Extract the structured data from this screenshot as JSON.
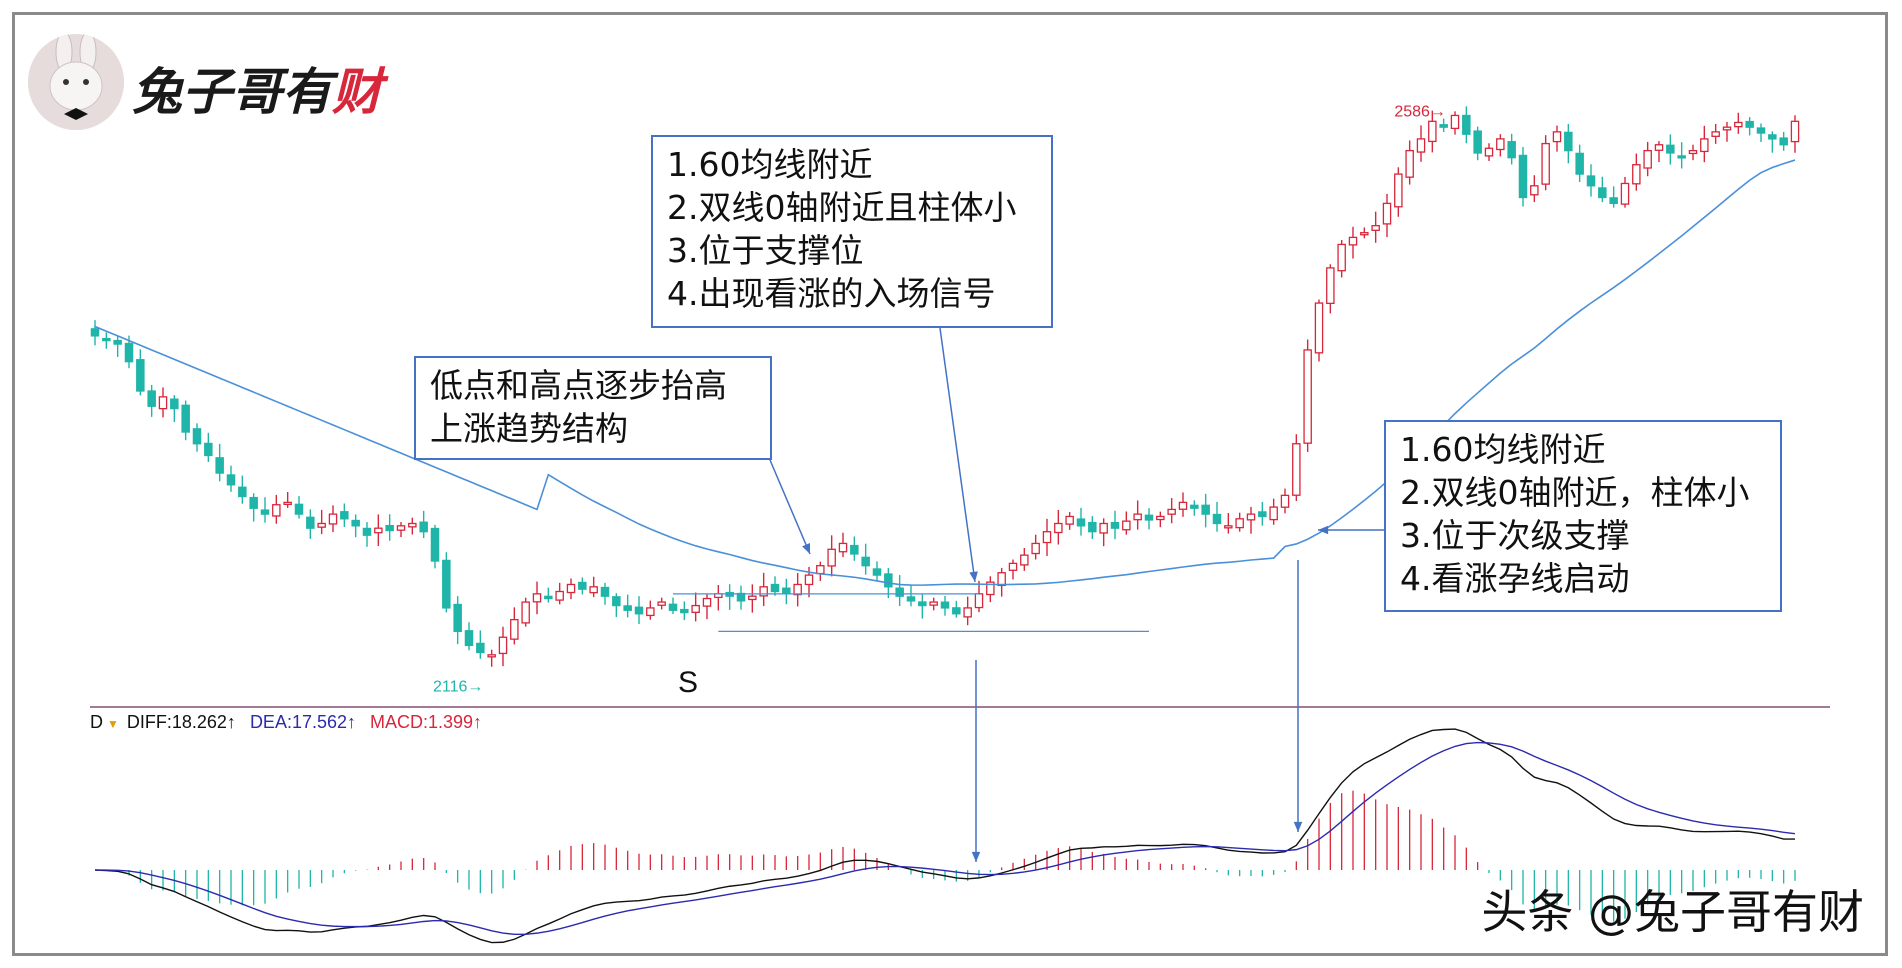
{
  "logo": {
    "text_main": "兔子哥有",
    "text_accent": "财",
    "avatar": "rabbit-avatar"
  },
  "watermark": "头条 @兔子哥有财",
  "annotations": {
    "box_top": [
      "1.60均线附近",
      "2.双线0轴附近且柱体小",
      "3.位于支撑位",
      "4.出现看涨的入场信号"
    ],
    "box_left": [
      "低点和高点逐步抬高",
      "上涨趋势结构"
    ],
    "box_right": [
      "1.60均线附近",
      "2.双线0轴附近，柱体小",
      "3.位于次级支撑",
      "4.看涨孕线启动"
    ],
    "support_label": "S"
  },
  "markers": {
    "low_label": "2116",
    "high_label": "2586"
  },
  "macd_legend": {
    "prefix": "D",
    "diff": "DIFF:18.262↑",
    "dea": "DEA:17.562↑",
    "macd": "MACD:1.399↑"
  },
  "colors": {
    "up": "#d8263a",
    "down": "#1fb5a8",
    "ma60": "#4a90d9",
    "diff": "#111111",
    "dea": "#2b2bb0",
    "annot_border": "#4472c4"
  },
  "chart_data": [
    {
      "type": "candlestick",
      "title": "",
      "overlays": [
        "MA60"
      ],
      "low_marker": 2116,
      "high_marker": 2586,
      "close": [
        2392,
        2388,
        2385,
        2370,
        2345,
        2332,
        2340,
        2330,
        2310,
        2300,
        2290,
        2275,
        2265,
        2255,
        2245,
        2240,
        2248,
        2250,
        2240,
        2228,
        2232,
        2240,
        2236,
        2230,
        2222,
        2228,
        2226,
        2230,
        2232,
        2225,
        2200,
        2160,
        2140,
        2128,
        2122,
        2120,
        2135,
        2150,
        2165,
        2172,
        2168,
        2174,
        2180,
        2176,
        2178,
        2170,
        2162,
        2158,
        2155,
        2160,
        2165,
        2158,
        2156,
        2162,
        2168,
        2172,
        2170,
        2166,
        2170,
        2178,
        2174,
        2172,
        2180,
        2188,
        2196,
        2210,
        2215,
        2206,
        2196,
        2188,
        2178,
        2170,
        2166,
        2162,
        2165,
        2160,
        2155,
        2160,
        2172,
        2182,
        2190,
        2198,
        2205,
        2215,
        2225,
        2232,
        2238,
        2230,
        2225,
        2232,
        2228,
        2234,
        2240,
        2235,
        2238,
        2244,
        2250,
        2245,
        2240,
        2232,
        2230,
        2236,
        2240,
        2238,
        2246,
        2256,
        2300,
        2380,
        2420,
        2450,
        2470,
        2476,
        2480,
        2486,
        2505,
        2530,
        2550,
        2560,
        2575,
        2570,
        2580,
        2564,
        2548,
        2552,
        2560,
        2544,
        2510,
        2520,
        2556,
        2566,
        2550,
        2530,
        2520,
        2510,
        2505,
        2522,
        2538,
        2550,
        2555,
        2548,
        2545,
        2550,
        2560,
        2566,
        2570,
        2574,
        2570,
        2565,
        2560,
        2555,
        2575
      ]
    },
    {
      "type": "macd",
      "title": "",
      "series_names": [
        "DIFF",
        "DEA",
        "MACD"
      ]
    }
  ]
}
